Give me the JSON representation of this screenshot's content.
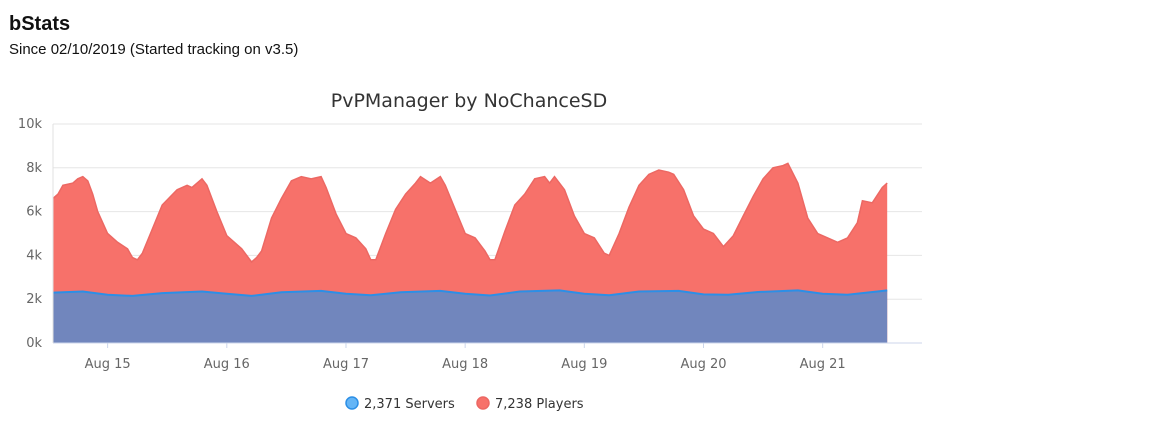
{
  "header": {
    "title": "bStats",
    "subtitle": "Since 02/10/2019 (Started tracking on v3.5)"
  },
  "colors": {
    "players_fill": "#f7716a",
    "players_line": "#ec6863",
    "servers_fill": "#7186bd",
    "servers_line": "#2c8fe6",
    "servers_legend": "#64b5f6",
    "grid": "#e6e6e6"
  },
  "legend": [
    {
      "label": "2,371 Servers",
      "color": "#64b5f6",
      "icon": "circle-marker"
    },
    {
      "label": "7,238 Players",
      "color": "#f7716a",
      "icon": "circle-marker"
    }
  ],
  "chart_data": {
    "type": "area",
    "stacking": "overlapping",
    "title": "PvPManager by NoChanceSD",
    "xlabel": "",
    "ylabel": "",
    "ylim": [
      0,
      10000
    ],
    "yticks": [
      {
        "value": 0,
        "label": "0k"
      },
      {
        "value": 2000,
        "label": "2k"
      },
      {
        "value": 4000,
        "label": "4k"
      },
      {
        "value": 6000,
        "label": "6k"
      },
      {
        "value": 8000,
        "label": "8k"
      },
      {
        "value": 10000,
        "label": "10k"
      }
    ],
    "xlim": [
      "2019-08-14 13:00",
      "2019-08-21 20:00"
    ],
    "xticks": [
      {
        "value": "2019-08-15 00:00",
        "label": "Aug 15"
      },
      {
        "value": "2019-08-16 00:00",
        "label": "Aug 16"
      },
      {
        "value": "2019-08-17 00:00",
        "label": "Aug 17"
      },
      {
        "value": "2019-08-18 00:00",
        "label": "Aug 18"
      },
      {
        "value": "2019-08-19 00:00",
        "label": "Aug 19"
      },
      {
        "value": "2019-08-20 00:00",
        "label": "Aug 20"
      },
      {
        "value": "2019-08-21 00:00",
        "label": "Aug 21"
      }
    ],
    "grid": true,
    "legend_position": "bottom-center",
    "series": [
      {
        "name": "Players",
        "color": "#f7716a",
        "points": [
          [
            "2019-08-14 13:00",
            6600
          ],
          [
            "2019-08-14 14:00",
            6800
          ],
          [
            "2019-08-14 15:00",
            7200
          ],
          [
            "2019-08-14 17:00",
            7300
          ],
          [
            "2019-08-14 18:00",
            7500
          ],
          [
            "2019-08-14 19:00",
            7600
          ],
          [
            "2019-08-14 20:00",
            7400
          ],
          [
            "2019-08-14 21:00",
            6800
          ],
          [
            "2019-08-14 22:00",
            6000
          ],
          [
            "2019-08-15 00:00",
            5000
          ],
          [
            "2019-08-15 02:00",
            4600
          ],
          [
            "2019-08-15 04:00",
            4300
          ],
          [
            "2019-08-15 05:00",
            3900
          ],
          [
            "2019-08-15 06:00",
            3800
          ],
          [
            "2019-08-15 07:00",
            4100
          ],
          [
            "2019-08-15 09:00",
            5200
          ],
          [
            "2019-08-15 11:00",
            6300
          ],
          [
            "2019-08-15 14:00",
            7000
          ],
          [
            "2019-08-15 16:00",
            7200
          ],
          [
            "2019-08-15 17:00",
            7100
          ],
          [
            "2019-08-15 19:00",
            7500
          ],
          [
            "2019-08-15 20:00",
            7200
          ],
          [
            "2019-08-15 22:00",
            6000
          ],
          [
            "2019-08-16 00:00",
            4900
          ],
          [
            "2019-08-16 01:00",
            4700
          ],
          [
            "2019-08-16 03:00",
            4300
          ],
          [
            "2019-08-16 05:00",
            3700
          ],
          [
            "2019-08-16 06:00",
            3900
          ],
          [
            "2019-08-16 07:00",
            4200
          ],
          [
            "2019-08-16 09:00",
            5700
          ],
          [
            "2019-08-16 11:00",
            6600
          ],
          [
            "2019-08-16 13:00",
            7400
          ],
          [
            "2019-08-16 15:00",
            7600
          ],
          [
            "2019-08-16 17:00",
            7500
          ],
          [
            "2019-08-16 19:00",
            7600
          ],
          [
            "2019-08-16 20:00",
            7100
          ],
          [
            "2019-08-16 22:00",
            5900
          ],
          [
            "2019-08-17 00:00",
            5000
          ],
          [
            "2019-08-17 02:00",
            4800
          ],
          [
            "2019-08-17 04:00",
            4300
          ],
          [
            "2019-08-17 05:00",
            3800
          ],
          [
            "2019-08-17 06:00",
            3800
          ],
          [
            "2019-08-17 08:00",
            5000
          ],
          [
            "2019-08-17 10:00",
            6100
          ],
          [
            "2019-08-17 12:00",
            6800
          ],
          [
            "2019-08-17 14:00",
            7300
          ],
          [
            "2019-08-17 15:00",
            7600
          ],
          [
            "2019-08-17 17:00",
            7300
          ],
          [
            "2019-08-17 19:00",
            7600
          ],
          [
            "2019-08-17 20:00",
            7200
          ],
          [
            "2019-08-17 22:00",
            6100
          ],
          [
            "2019-08-18 00:00",
            5000
          ],
          [
            "2019-08-18 02:00",
            4800
          ],
          [
            "2019-08-18 04:00",
            4200
          ],
          [
            "2019-08-18 05:00",
            3800
          ],
          [
            "2019-08-18 06:00",
            3800
          ],
          [
            "2019-08-18 08:00",
            5100
          ],
          [
            "2019-08-18 10:00",
            6300
          ],
          [
            "2019-08-18 12:00",
            6800
          ],
          [
            "2019-08-18 14:00",
            7500
          ],
          [
            "2019-08-18 16:00",
            7600
          ],
          [
            "2019-08-18 17:00",
            7300
          ],
          [
            "2019-08-18 18:00",
            7600
          ],
          [
            "2019-08-18 20:00",
            7000
          ],
          [
            "2019-08-18 22:00",
            5800
          ],
          [
            "2019-08-19 00:00",
            5000
          ],
          [
            "2019-08-19 02:00",
            4800
          ],
          [
            "2019-08-19 04:00",
            4100
          ],
          [
            "2019-08-19 05:00",
            4000
          ],
          [
            "2019-08-19 07:00",
            5000
          ],
          [
            "2019-08-19 09:00",
            6200
          ],
          [
            "2019-08-19 11:00",
            7200
          ],
          [
            "2019-08-19 13:00",
            7700
          ],
          [
            "2019-08-19 15:00",
            7900
          ],
          [
            "2019-08-19 17:00",
            7800
          ],
          [
            "2019-08-19 18:00",
            7700
          ],
          [
            "2019-08-19 20:00",
            7000
          ],
          [
            "2019-08-19 22:00",
            5800
          ],
          [
            "2019-08-20 00:00",
            5200
          ],
          [
            "2019-08-20 02:00",
            5000
          ],
          [
            "2019-08-20 04:00",
            4400
          ],
          [
            "2019-08-20 06:00",
            4900
          ],
          [
            "2019-08-20 08:00",
            5800
          ],
          [
            "2019-08-20 10:00",
            6700
          ],
          [
            "2019-08-20 12:00",
            7500
          ],
          [
            "2019-08-20 14:00",
            8000
          ],
          [
            "2019-08-20 16:00",
            8100
          ],
          [
            "2019-08-20 17:00",
            8200
          ],
          [
            "2019-08-20 19:00",
            7300
          ],
          [
            "2019-08-20 21:00",
            5700
          ],
          [
            "2019-08-20 23:00",
            5000
          ],
          [
            "2019-08-21 01:00",
            4800
          ],
          [
            "2019-08-21 03:00",
            4600
          ],
          [
            "2019-08-21 05:00",
            4800
          ],
          [
            "2019-08-21 07:00",
            5500
          ],
          [
            "2019-08-21 08:00",
            6500
          ],
          [
            "2019-08-21 10:00",
            6400
          ],
          [
            "2019-08-21 12:00",
            7100
          ],
          [
            "2019-08-21 13:00",
            7300
          ]
        ]
      },
      {
        "name": "Servers",
        "color": "#7186bd",
        "points": [
          [
            "2019-08-14 13:00",
            2300
          ],
          [
            "2019-08-14 19:00",
            2350
          ],
          [
            "2019-08-15 00:00",
            2200
          ],
          [
            "2019-08-15 05:00",
            2150
          ],
          [
            "2019-08-15 11:00",
            2280
          ],
          [
            "2019-08-15 19:00",
            2350
          ],
          [
            "2019-08-16 00:00",
            2250
          ],
          [
            "2019-08-16 05:00",
            2150
          ],
          [
            "2019-08-16 11:00",
            2320
          ],
          [
            "2019-08-16 19:00",
            2380
          ],
          [
            "2019-08-17 00:00",
            2250
          ],
          [
            "2019-08-17 05:00",
            2180
          ],
          [
            "2019-08-17 11:00",
            2320
          ],
          [
            "2019-08-17 19:00",
            2380
          ],
          [
            "2019-08-18 00:00",
            2250
          ],
          [
            "2019-08-18 05:00",
            2170
          ],
          [
            "2019-08-18 11:00",
            2350
          ],
          [
            "2019-08-18 19:00",
            2400
          ],
          [
            "2019-08-19 00:00",
            2250
          ],
          [
            "2019-08-19 05:00",
            2180
          ],
          [
            "2019-08-19 11:00",
            2350
          ],
          [
            "2019-08-19 19:00",
            2380
          ],
          [
            "2019-08-20 00:00",
            2220
          ],
          [
            "2019-08-20 05:00",
            2200
          ],
          [
            "2019-08-20 11:00",
            2330
          ],
          [
            "2019-08-20 19:00",
            2400
          ],
          [
            "2019-08-21 00:00",
            2250
          ],
          [
            "2019-08-21 05:00",
            2200
          ],
          [
            "2019-08-21 11:00",
            2350
          ],
          [
            "2019-08-21 13:00",
            2400
          ]
        ]
      }
    ]
  }
}
